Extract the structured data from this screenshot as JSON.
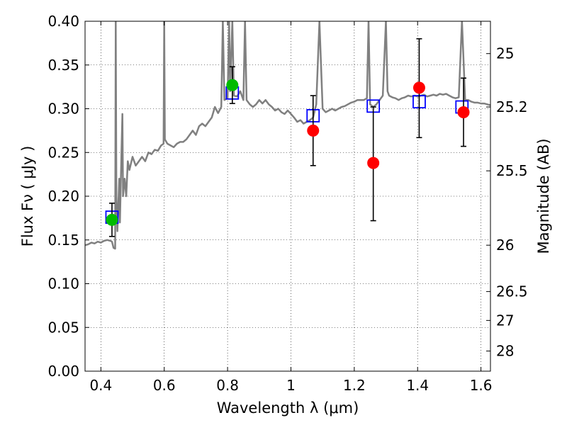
{
  "chart_data": {
    "type": "scatter",
    "xlabel": "Wavelength  λ (μm)",
    "ylabel_left": "Flux  Fν  ( μJy )",
    "ylabel_right": "Magnitude (AB)",
    "xlim": [
      0.35,
      1.63
    ],
    "ylim": [
      0.0,
      0.4
    ],
    "grid": true,
    "x_ticks": [
      0.4,
      0.6,
      0.8,
      1.0,
      1.2,
      1.4,
      1.6
    ],
    "x_tick_labels": [
      "0.4",
      "0.6",
      "0.8",
      "1",
      "1.2",
      "1.4",
      "1.6"
    ],
    "y_ticks": [
      0.0,
      0.05,
      0.1,
      0.15,
      0.2,
      0.25,
      0.3,
      0.35,
      0.4
    ],
    "y_tick_labels": [
      "0.00",
      "0.05",
      "0.10",
      "0.15",
      "0.20",
      "0.25",
      "0.30",
      "0.35",
      "0.40"
    ],
    "mag_ticks": [
      {
        "label": "25",
        "flux": 0.363
      },
      {
        "label": "25.2",
        "flux": 0.302
      },
      {
        "label": "25.5",
        "flux": 0.229
      },
      {
        "label": "26",
        "flux": 0.144
      },
      {
        "label": "26.5",
        "flux": 0.091
      },
      {
        "label": "27",
        "flux": 0.058
      },
      {
        "label": "28",
        "flux": 0.023
      }
    ],
    "model_spectrum": {
      "color": "#808080",
      "points": [
        [
          0.35,
          0.144
        ],
        [
          0.36,
          0.145
        ],
        [
          0.37,
          0.147
        ],
        [
          0.38,
          0.146
        ],
        [
          0.39,
          0.148
        ],
        [
          0.4,
          0.147
        ],
        [
          0.41,
          0.149
        ],
        [
          0.42,
          0.15
        ],
        [
          0.43,
          0.149
        ],
        [
          0.435,
          0.148
        ],
        [
          0.44,
          0.141
        ],
        [
          0.445,
          0.14
        ],
        [
          0.447,
          0.4
        ],
        [
          0.449,
          0.2
        ],
        [
          0.452,
          0.16
        ],
        [
          0.458,
          0.22
        ],
        [
          0.46,
          0.17
        ],
        [
          0.465,
          0.25
        ],
        [
          0.468,
          0.294
        ],
        [
          0.47,
          0.2
        ],
        [
          0.475,
          0.22
        ],
        [
          0.48,
          0.2
        ],
        [
          0.485,
          0.24
        ],
        [
          0.49,
          0.23
        ],
        [
          0.5,
          0.245
        ],
        [
          0.51,
          0.235
        ],
        [
          0.52,
          0.24
        ],
        [
          0.53,
          0.245
        ],
        [
          0.54,
          0.24
        ],
        [
          0.55,
          0.25
        ],
        [
          0.56,
          0.248
        ],
        [
          0.57,
          0.253
        ],
        [
          0.58,
          0.252
        ],
        [
          0.59,
          0.258
        ],
        [
          0.598,
          0.26
        ],
        [
          0.6,
          0.4
        ],
        [
          0.602,
          0.265
        ],
        [
          0.61,
          0.26
        ],
        [
          0.62,
          0.258
        ],
        [
          0.63,
          0.256
        ],
        [
          0.64,
          0.26
        ],
        [
          0.65,
          0.262
        ],
        [
          0.66,
          0.262
        ],
        [
          0.67,
          0.265
        ],
        [
          0.68,
          0.27
        ],
        [
          0.69,
          0.275
        ],
        [
          0.7,
          0.27
        ],
        [
          0.71,
          0.28
        ],
        [
          0.72,
          0.283
        ],
        [
          0.73,
          0.28
        ],
        [
          0.74,
          0.285
        ],
        [
          0.75,
          0.29
        ],
        [
          0.76,
          0.302
        ],
        [
          0.77,
          0.295
        ],
        [
          0.78,
          0.302
        ],
        [
          0.785,
          0.4
        ],
        [
          0.79,
          0.31
        ],
        [
          0.8,
          0.312
        ],
        [
          0.805,
          0.4
        ],
        [
          0.808,
          0.32
        ],
        [
          0.815,
          0.4
        ],
        [
          0.82,
          0.315
        ],
        [
          0.83,
          0.314
        ],
        [
          0.84,
          0.32
        ],
        [
          0.85,
          0.31
        ],
        [
          0.855,
          0.4
        ],
        [
          0.86,
          0.31
        ],
        [
          0.87,
          0.305
        ],
        [
          0.88,
          0.302
        ],
        [
          0.89,
          0.305
        ],
        [
          0.9,
          0.31
        ],
        [
          0.91,
          0.306
        ],
        [
          0.92,
          0.31
        ],
        [
          0.93,
          0.305
        ],
        [
          0.94,
          0.302
        ],
        [
          0.95,
          0.298
        ],
        [
          0.96,
          0.3
        ],
        [
          0.97,
          0.296
        ],
        [
          0.98,
          0.294
        ],
        [
          0.99,
          0.298
        ],
        [
          1.0,
          0.294
        ],
        [
          1.01,
          0.29
        ],
        [
          1.02,
          0.285
        ],
        [
          1.03,
          0.287
        ],
        [
          1.04,
          0.283
        ],
        [
          1.05,
          0.285
        ],
        [
          1.06,
          0.287
        ],
        [
          1.07,
          0.29
        ],
        [
          1.08,
          0.305
        ],
        [
          1.09,
          0.4
        ],
        [
          1.1,
          0.3
        ],
        [
          1.11,
          0.296
        ],
        [
          1.12,
          0.298
        ],
        [
          1.13,
          0.3
        ],
        [
          1.14,
          0.298
        ],
        [
          1.15,
          0.3
        ],
        [
          1.16,
          0.302
        ],
        [
          1.17,
          0.303
        ],
        [
          1.18,
          0.305
        ],
        [
          1.19,
          0.307
        ],
        [
          1.2,
          0.308
        ],
        [
          1.21,
          0.31
        ],
        [
          1.22,
          0.31
        ],
        [
          1.23,
          0.31
        ],
        [
          1.24,
          0.312
        ],
        [
          1.245,
          0.4
        ],
        [
          1.25,
          0.305
        ],
        [
          1.26,
          0.302
        ],
        [
          1.27,
          0.305
        ],
        [
          1.28,
          0.31
        ],
        [
          1.29,
          0.315
        ],
        [
          1.3,
          0.4
        ],
        [
          1.305,
          0.32
        ],
        [
          1.31,
          0.315
        ],
        [
          1.32,
          0.313
        ],
        [
          1.33,
          0.312
        ],
        [
          1.34,
          0.31
        ],
        [
          1.35,
          0.312
        ],
        [
          1.36,
          0.313
        ],
        [
          1.37,
          0.315
        ],
        [
          1.38,
          0.314
        ],
        [
          1.39,
          0.315
        ],
        [
          1.4,
          0.314
        ],
        [
          1.41,
          0.315
        ],
        [
          1.42,
          0.316
        ],
        [
          1.43,
          0.314
        ],
        [
          1.44,
          0.315
        ],
        [
          1.45,
          0.316
        ],
        [
          1.46,
          0.315
        ],
        [
          1.47,
          0.317
        ],
        [
          1.48,
          0.316
        ],
        [
          1.49,
          0.317
        ],
        [
          1.5,
          0.315
        ],
        [
          1.51,
          0.313
        ],
        [
          1.52,
          0.312
        ],
        [
          1.53,
          0.313
        ],
        [
          1.54,
          0.4
        ],
        [
          1.55,
          0.31
        ],
        [
          1.56,
          0.31
        ],
        [
          1.57,
          0.308
        ],
        [
          1.58,
          0.307
        ],
        [
          1.59,
          0.307
        ],
        [
          1.6,
          0.306
        ],
        [
          1.61,
          0.306
        ],
        [
          1.62,
          0.305
        ],
        [
          1.63,
          0.304
        ]
      ]
    },
    "model_photometry": {
      "marker": "open-square",
      "color": "#0000ff",
      "points": [
        {
          "x": 0.435,
          "y": 0.176
        },
        {
          "x": 0.815,
          "y": 0.318
        },
        {
          "x": 1.07,
          "y": 0.292
        },
        {
          "x": 1.26,
          "y": 0.303
        },
        {
          "x": 1.405,
          "y": 0.308
        },
        {
          "x": 1.54,
          "y": 0.302
        }
      ]
    },
    "observed_photometry": {
      "marker": "filled-circle",
      "points": [
        {
          "x": 0.435,
          "y": 0.173,
          "yerr_low": 0.154,
          "yerr_high": 0.192,
          "color": "#00bb00"
        },
        {
          "x": 0.815,
          "y": 0.327,
          "yerr_low": 0.306,
          "yerr_high": 0.348,
          "color": "#00bb00"
        },
        {
          "x": 1.07,
          "y": 0.275,
          "yerr_low": 0.235,
          "yerr_high": 0.315,
          "color": "#ff0000"
        },
        {
          "x": 1.26,
          "y": 0.238,
          "yerr_low": 0.172,
          "yerr_high": 0.302,
          "color": "#ff0000"
        },
        {
          "x": 1.405,
          "y": 0.324,
          "yerr_low": 0.267,
          "yerr_high": 0.38,
          "color": "#ff0000"
        },
        {
          "x": 1.545,
          "y": 0.296,
          "yerr_low": 0.257,
          "yerr_high": 0.335,
          "color": "#ff0000"
        }
      ]
    }
  }
}
